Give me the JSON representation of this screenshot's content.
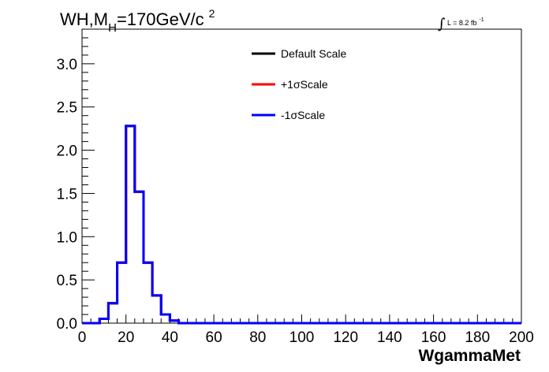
{
  "chart_data": {
    "type": "line",
    "title_main": "WH,M",
    "title_sub": "H",
    "title_rest": "=170GeV/c",
    "title_sup": "2",
    "lumi_integral": "∫",
    "lumi_text": "L = 8.2 fb",
    "lumi_sup": "-1",
    "xlabel": "WgammaMet",
    "ylabel": "",
    "xlim": [
      0,
      200
    ],
    "ylim": [
      0,
      3.4
    ],
    "x_ticks": [
      "0",
      "20",
      "40",
      "60",
      "80",
      "100",
      "120",
      "140",
      "160",
      "180",
      "200"
    ],
    "y_ticks": [
      "0.0",
      "0.5",
      "1.0",
      "1.5",
      "2.0",
      "2.5",
      "3.0"
    ],
    "bin_edges": [
      0,
      4,
      8,
      12,
      16,
      20,
      24,
      28,
      32,
      36,
      40,
      44,
      48,
      200
    ],
    "series": [
      {
        "name": "Default Scale",
        "color": "#000000",
        "values": [
          0.0,
          0.0,
          0.05,
          0.23,
          0.7,
          2.28,
          1.52,
          0.7,
          0.32,
          0.1,
          0.03,
          0.0,
          0.0
        ]
      },
      {
        "name": "+1σScale",
        "color": "#ff0000",
        "values": [
          0.0,
          0.0,
          0.05,
          0.23,
          0.7,
          2.28,
          1.52,
          0.7,
          0.32,
          0.1,
          0.03,
          0.0,
          0.0
        ]
      },
      {
        "name": "-1σScale",
        "color": "#0000ff",
        "values": [
          0.0,
          0.0,
          0.05,
          0.23,
          0.7,
          2.28,
          1.52,
          0.7,
          0.32,
          0.1,
          0.03,
          0.0,
          0.0
        ]
      }
    ],
    "legend_position": "top-right",
    "grid": false
  }
}
